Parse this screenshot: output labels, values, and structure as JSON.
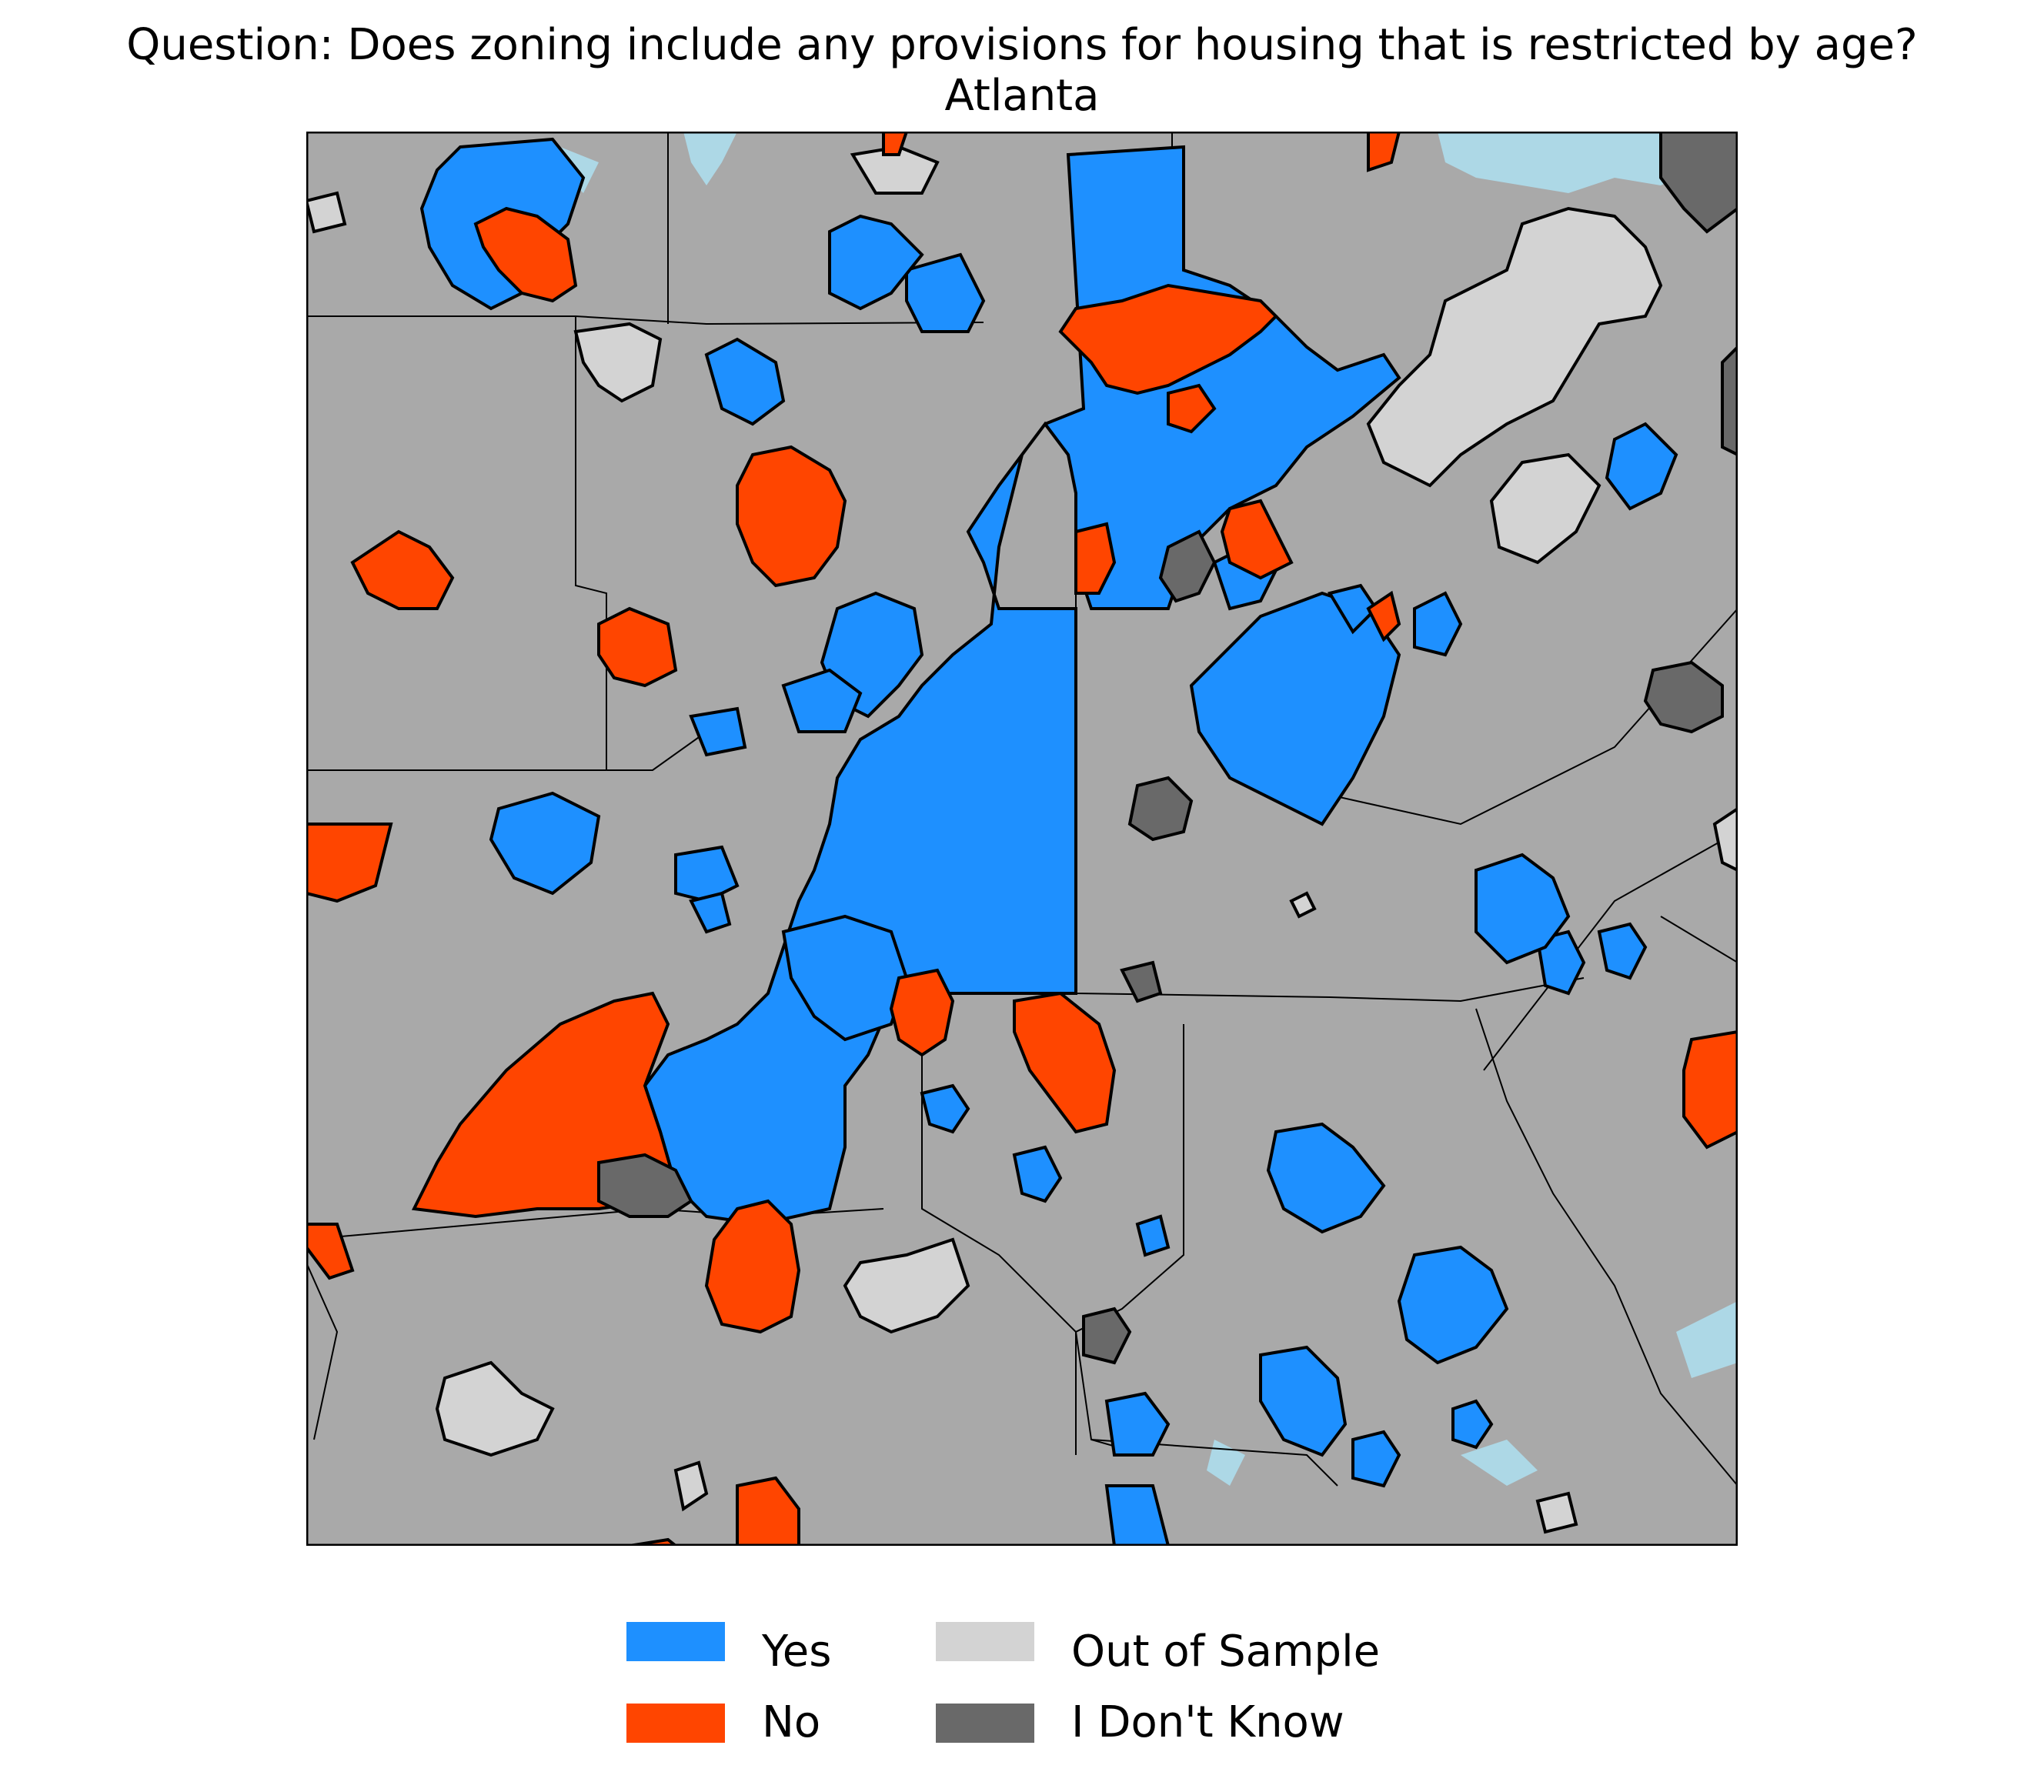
{
  "title": {
    "question": "Question: Does zoning include any provisions for housing that is restricted by age?",
    "region": "Atlanta"
  },
  "colors": {
    "yes": "#1e90ff",
    "no": "#ff4500",
    "out_of_sample": "#d3d3d3",
    "unknown": "#696969",
    "background_land": "#a9a9a9",
    "water": "#add8e6",
    "boundary": "#000000"
  },
  "legend": {
    "items": [
      {
        "label": "Yes",
        "color": "#1e90ff"
      },
      {
        "label": "No",
        "color": "#ff4500"
      },
      {
        "label": "Out of Sample",
        "color": "#d3d3d3"
      },
      {
        "label": "I Don't Know",
        "color": "#696969"
      }
    ]
  }
}
